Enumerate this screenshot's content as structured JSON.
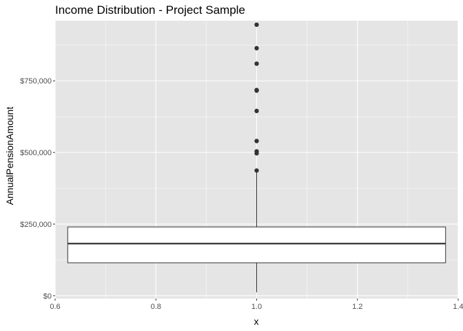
{
  "chart_data": {
    "type": "boxplot",
    "title": "Income Distribution - Project Sample",
    "xlabel": "x",
    "ylabel": "AnnualPensionAmount",
    "xlim": [
      0.6,
      1.4
    ],
    "ylim": [
      -10000,
      960000
    ],
    "x_ticks": [
      {
        "value": 0.6,
        "label": "0.6"
      },
      {
        "value": 0.8,
        "label": "0.8"
      },
      {
        "value": 1.0,
        "label": "1.0"
      },
      {
        "value": 1.2,
        "label": "1.2"
      },
      {
        "value": 1.4,
        "label": "1.4"
      }
    ],
    "y_ticks": [
      {
        "value": 0,
        "label": "$0"
      },
      {
        "value": 250000,
        "label": "$250,000"
      },
      {
        "value": 500000,
        "label": "$500,000"
      },
      {
        "value": 750000,
        "label": "$750,000"
      }
    ],
    "box": {
      "x": 1.0,
      "x_left": 0.625,
      "x_right": 1.375,
      "q1": 115000,
      "median": 182000,
      "q3": 240000,
      "whisker_low": 12000,
      "whisker_high": 432000
    },
    "outliers": [
      437000,
      497000,
      504000,
      540000,
      645000,
      716000,
      718000,
      810000,
      864000,
      946000
    ],
    "grid": true,
    "colors": {
      "panel_background": "#e5e5e5",
      "gridline": "#ffffff",
      "box_fill": "#ffffff",
      "box_stroke": "#333333",
      "outlier": "#333333"
    }
  }
}
